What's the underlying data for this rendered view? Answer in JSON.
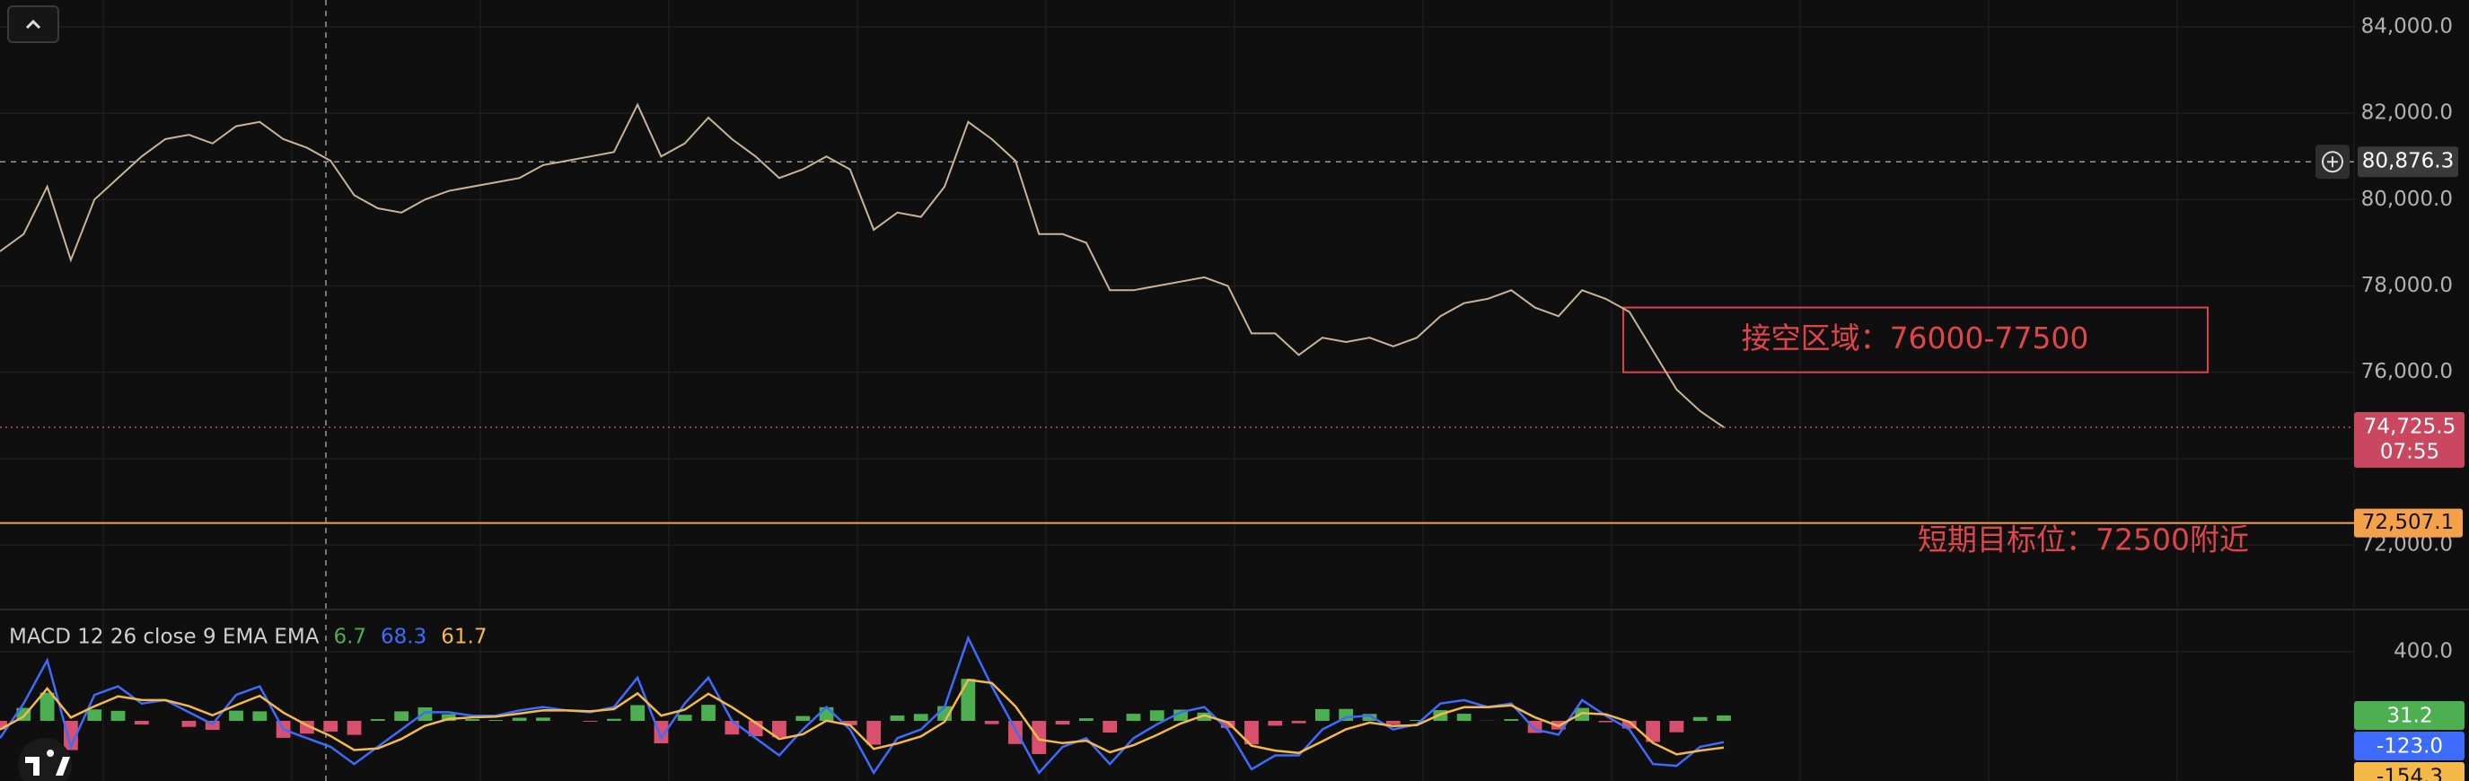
{
  "chart_data": [
    {
      "type": "line",
      "color": "#c9b49a",
      "values": [
        78800,
        79200,
        80300,
        78600,
        80000,
        80500,
        81000,
        81400,
        81500,
        81300,
        81700,
        81800,
        81400,
        81200,
        80900,
        80100,
        79800,
        79700,
        80000,
        80200,
        80300,
        80400,
        80500,
        80800,
        80900,
        81000,
        81100,
        82200,
        81000,
        81300,
        81900,
        81400,
        81000,
        80500,
        80700,
        81000,
        80700,
        79300,
        79700,
        79600,
        80300,
        81800,
        81400,
        80900,
        79200,
        79200,
        79000,
        77900,
        77900,
        78000,
        78100,
        78200,
        78000,
        76900,
        76900,
        76400,
        76800,
        76700,
        76800,
        76600,
        76800,
        77300,
        77600,
        77700,
        77900,
        77500,
        77300,
        77900,
        77700,
        77400,
        76500,
        75600,
        75100,
        74725.5
      ],
      "ylim": [
        70503,
        84624
      ],
      "yticks": [
        {
          "value": 84000,
          "label": "84,000.0"
        },
        {
          "value": 82000,
          "label": "82,000.0"
        },
        {
          "value": 80000,
          "label": "80,000.0"
        },
        {
          "value": 78000,
          "label": "78,000.0"
        },
        {
          "value": 76000,
          "label": "76,000.0"
        },
        {
          "value": 74000,
          "label": "74,000.0"
        },
        {
          "value": 72000,
          "label": "72,000.0"
        }
      ],
      "grid": true,
      "crosshair": {
        "value": 80876.3,
        "label": "80,876.3"
      },
      "last_price": {
        "value": 74725.5,
        "label": "74,725.5"
      },
      "countdown": "07:55",
      "target_line": {
        "value": 72507.1,
        "label": "72,507.1"
      },
      "annotations": [
        {
          "text": "接空区域：76000-77500",
          "high": 77500,
          "low": 76000
        },
        {
          "text": "短期目标位：72500附近"
        }
      ]
    },
    {
      "type": "macd",
      "title": "MACD 12 26 close 9 EMA EMA",
      "ylim": [
        -348,
        644
      ],
      "yticks": [
        {
          "value": 400,
          "label": "400.0"
        }
      ],
      "series": [
        {
          "style": "histogram",
          "color": "#4caf50",
          "negative_color": "#d9506f",
          "legend_value": 6.7,
          "last_value": 31.2,
          "values": [
            -50,
            75,
            163,
            -169,
            66,
            58,
            -21,
            0,
            -35,
            -52,
            59,
            55,
            -98,
            -74,
            -62,
            -81,
            10,
            55,
            78,
            39,
            10,
            5,
            18,
            19,
            0,
            -5,
            12,
            91,
            -130,
            35,
            93,
            -79,
            -89,
            -95,
            28,
            79,
            -25,
            -138,
            31,
            40,
            85,
            243,
            -19,
            -134,
            -192,
            -21,
            15,
            -68,
            41,
            61,
            65,
            48,
            -41,
            -136,
            -28,
            -14,
            68,
            69,
            40,
            -20,
            5,
            62,
            41,
            1,
            10,
            -70,
            -50,
            75,
            -8,
            -44,
            -122,
            -66,
            22,
            31.2
          ]
        },
        {
          "style": "line",
          "color": "#3d6bff",
          "legend_value": 68.3,
          "last_value": {
            "value": -123,
            "label": "-123.0"
          },
          "values": [
            -100,
            100,
            350,
            -150,
            150,
            200,
            100,
            120,
            50,
            -20,
            150,
            200,
            -50,
            -100,
            -150,
            -250,
            -150,
            -50,
            50,
            50,
            30,
            30,
            60,
            80,
            60,
            50,
            80,
            250,
            -100,
            100,
            250,
            0,
            -100,
            -200,
            -50,
            80,
            -50,
            -300,
            -100,
            -50,
            80,
            480,
            200,
            -50,
            -300,
            -150,
            -100,
            -250,
            -100,
            -20,
            50,
            80,
            -50,
            -280,
            -200,
            -200,
            -50,
            20,
            30,
            -50,
            -20,
            100,
            120,
            80,
            100,
            -50,
            -80,
            120,
            30,
            -50,
            -250,
            -260,
            -150,
            -123
          ]
        },
        {
          "style": "line",
          "color": "#f5b94a",
          "legend_value": 61.7,
          "last_value": -154.3,
          "values": [
            -50,
            25,
            187,
            19,
            84,
            142,
            121,
            120,
            85,
            32,
            91,
            145,
            48,
            -26,
            -88,
            -169,
            -160,
            -105,
            -28,
            11,
            20,
            25,
            42,
            61,
            60,
            55,
            68,
            159,
            30,
            65,
            157,
            79,
            -11,
            -105,
            -78,
            1,
            -25,
            -162,
            -131,
            -90,
            -5,
            237,
            219,
            84,
            -108,
            -129,
            -115,
            -182,
            -141,
            -81,
            -15,
            32,
            -9,
            -144,
            -172,
            -186,
            -118,
            -49,
            -10,
            -30,
            -25,
            38,
            79,
            79,
            90,
            20,
            -30,
            45,
            38,
            -6,
            -128,
            -194,
            -172,
            -154.3
          ]
        }
      ]
    }
  ]
}
